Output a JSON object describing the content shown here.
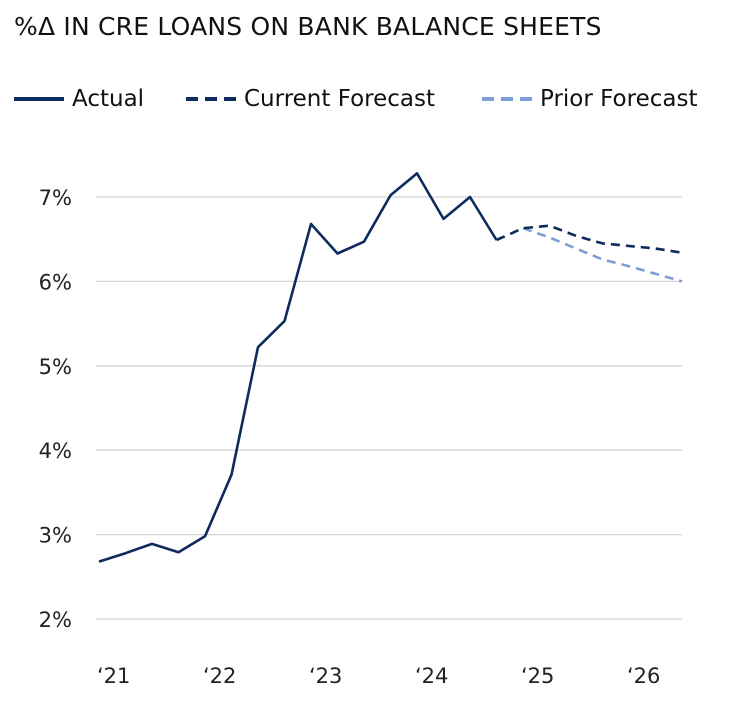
{
  "chart_data": {
    "type": "line",
    "title": "%Δ  IN CRE LOANS ON BANK BALANCE SHEETS",
    "xlabel": "",
    "ylabel": "",
    "ylim": [
      2,
      7
    ],
    "xlim": [
      2021,
      2026.5
    ],
    "y_ticks": [
      {
        "value": 2,
        "label": "2%"
      },
      {
        "value": 3,
        "label": "3%"
      },
      {
        "value": 4,
        "label": "4%"
      },
      {
        "value": 5,
        "label": "5%"
      },
      {
        "value": 6,
        "label": "6%"
      },
      {
        "value": 7,
        "label": "7%"
      }
    ],
    "x_ticks": [
      {
        "value": 2021,
        "label": "‘21"
      },
      {
        "value": 2022,
        "label": "‘22"
      },
      {
        "value": 2023,
        "label": "‘23"
      },
      {
        "value": 2024,
        "label": "‘24"
      },
      {
        "value": 2025,
        "label": "‘25"
      },
      {
        "value": 2026,
        "label": "‘26"
      }
    ],
    "grid": true,
    "legend_position": "top",
    "colors": {
      "actual": "#0d2b5c",
      "current": "#0d2b5c",
      "prior": "#7d9ed4",
      "grid": "#d4d4d4"
    },
    "series": [
      {
        "name": "Actual",
        "style": "solid",
        "x": [
          2021.0,
          2021.25,
          2021.5,
          2021.75,
          2022.0,
          2022.25,
          2022.5,
          2022.75,
          2023.0,
          2023.25,
          2023.5,
          2023.75,
          2024.0,
          2024.25,
          2024.5,
          2024.75
        ],
        "y": [
          2.68,
          2.78,
          2.89,
          2.79,
          2.98,
          3.71,
          5.22,
          5.53,
          6.68,
          6.33,
          6.47,
          7.02,
          7.28,
          6.74,
          7.0,
          6.49
        ]
      },
      {
        "name": "Current Forecast",
        "style": "dashed",
        "x": [
          2024.75,
          2025.0,
          2025.25,
          2025.5,
          2025.75,
          2026.0,
          2026.25,
          2026.5
        ],
        "y": [
          6.49,
          6.63,
          6.66,
          6.54,
          6.45,
          6.42,
          6.39,
          6.34
        ]
      },
      {
        "name": "Prior Forecast",
        "style": "dashed",
        "x": [
          2025.0,
          2025.25,
          2025.5,
          2025.75,
          2026.0,
          2026.25,
          2026.5
        ],
        "y": [
          6.63,
          6.52,
          6.39,
          6.26,
          6.18,
          6.09,
          6.0
        ]
      }
    ]
  },
  "legend": {
    "actual": "Actual",
    "current": "Current Forecast",
    "prior": "Prior Forecast"
  }
}
